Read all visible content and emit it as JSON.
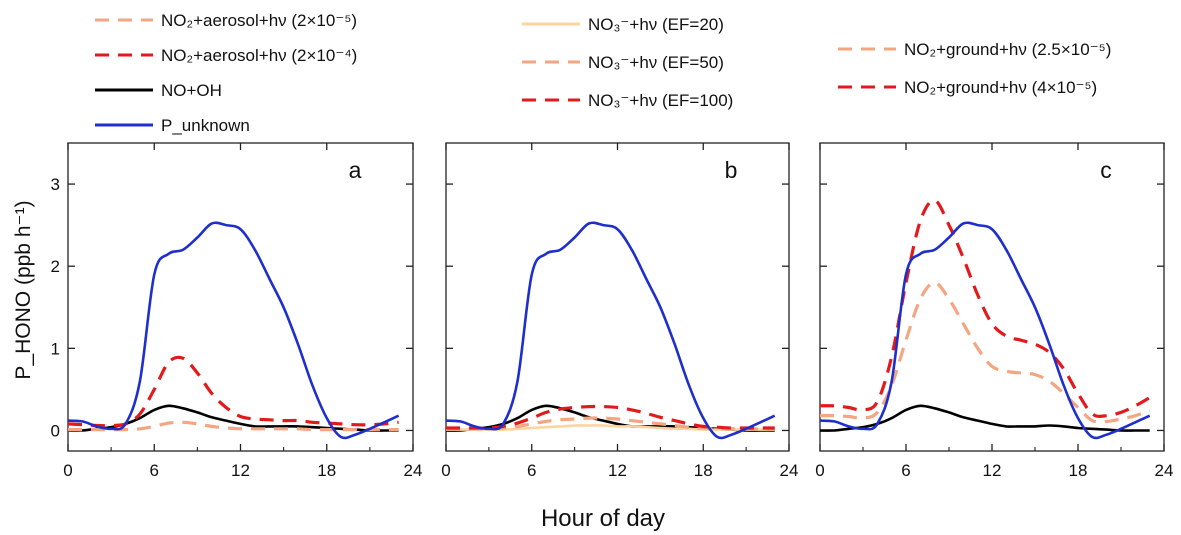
{
  "figure": {
    "ylabel": "P_HONO (ppb h⁻¹)",
    "xlabel": "Hour of day",
    "xticks": [
      "0",
      "6",
      "12",
      "18",
      "24"
    ],
    "yticks": [
      "0",
      "1",
      "2",
      "3"
    ]
  },
  "legend": {
    "group1": [
      {
        "text": "NO₂+aerosol+hν (2×10⁻⁵)",
        "color": "#f4a582",
        "dash": "dashed"
      },
      {
        "text": "NO₂+aerosol+hν (2×10⁻⁴)",
        "color": "#e31a1c",
        "dash": "dashed"
      },
      {
        "text": "NO+OH",
        "color": "#000000",
        "dash": "solid"
      },
      {
        "text": "P_unknown",
        "color": "#1f2fcc",
        "dash": "solid"
      }
    ],
    "group2": [
      {
        "text": "NO₃⁻+hν (EF=20)",
        "color": "#fdd49e",
        "dash": "solid"
      },
      {
        "text": "NO₃⁻+hν (EF=50)",
        "color": "#f4a582",
        "dash": "dashed"
      },
      {
        "text": "NO₃⁻+hν (EF=100)",
        "color": "#e31a1c",
        "dash": "dashed"
      }
    ],
    "group3": [
      {
        "text": "NO₂+ground+hν (2.5×10⁻⁵)",
        "color": "#f4a582",
        "dash": "dashed"
      },
      {
        "text": "NO₂+ground+hν (4×10⁻⁵)",
        "color": "#e31a1c",
        "dash": "dashed"
      }
    ]
  },
  "chart_data": [
    {
      "type": "line",
      "panel": "a",
      "xlim": [
        0,
        24
      ],
      "ylim": [
        -0.25,
        3.5
      ],
      "series": [
        {
          "name": "P_unknown",
          "color": "#1f2fcc",
          "dash": "solid",
          "x": [
            0,
            1,
            2,
            3,
            4,
            5,
            6,
            7,
            8,
            9,
            10,
            11,
            12,
            13,
            14,
            15,
            16,
            17,
            18,
            19,
            20,
            21,
            22,
            23
          ],
          "y": [
            0.12,
            0.11,
            0.05,
            0.02,
            0.08,
            0.6,
            1.9,
            2.15,
            2.2,
            2.35,
            2.52,
            2.5,
            2.45,
            2.2,
            1.85,
            1.5,
            1.05,
            0.55,
            0.15,
            -0.08,
            -0.05,
            0.02,
            0.1,
            0.18
          ]
        },
        {
          "name": "NO+OH",
          "color": "#000000",
          "dash": "solid",
          "x": [
            0,
            1,
            2,
            3,
            4,
            5,
            6,
            7,
            8,
            9,
            10,
            11,
            12,
            13,
            14,
            15,
            16,
            17,
            18,
            19,
            20,
            21,
            22,
            23
          ],
          "y": [
            0.0,
            0.0,
            0.02,
            0.04,
            0.08,
            0.15,
            0.25,
            0.3,
            0.27,
            0.22,
            0.16,
            0.12,
            0.08,
            0.05,
            0.05,
            0.05,
            0.05,
            0.04,
            0.03,
            0.02,
            0.01,
            0.0,
            0.0,
            0.0
          ]
        },
        {
          "name": "NO₂+aerosol+hν (2×10⁻⁴)",
          "color": "#e31a1c",
          "dash": "dashed",
          "x": [
            0,
            1,
            2,
            3,
            4,
            5,
            6,
            7,
            8,
            9,
            10,
            11,
            12,
            13,
            14,
            15,
            16,
            17,
            18,
            19,
            20,
            21,
            22,
            23
          ],
          "y": [
            0.08,
            0.07,
            0.06,
            0.06,
            0.08,
            0.2,
            0.5,
            0.83,
            0.88,
            0.7,
            0.45,
            0.28,
            0.17,
            0.14,
            0.13,
            0.12,
            0.12,
            0.1,
            0.09,
            0.08,
            0.07,
            0.07,
            0.08,
            0.1
          ]
        },
        {
          "name": "NO₂+aerosol+hν (2×10⁻⁵)",
          "color": "#f4a582",
          "dash": "dashed",
          "x": [
            0,
            1,
            2,
            3,
            4,
            5,
            6,
            7,
            8,
            9,
            10,
            11,
            12,
            13,
            14,
            15,
            16,
            17,
            18,
            19,
            20,
            21,
            22,
            23
          ],
          "y": [
            0.01,
            0.01,
            0.01,
            0.01,
            0.01,
            0.02,
            0.05,
            0.09,
            0.1,
            0.08,
            0.05,
            0.03,
            0.02,
            0.02,
            0.02,
            0.02,
            0.02,
            0.01,
            0.01,
            0.01,
            0.01,
            0.01,
            0.01,
            0.01
          ]
        }
      ]
    },
    {
      "type": "line",
      "panel": "b",
      "xlim": [
        0,
        24
      ],
      "ylim": [
        -0.25,
        3.5
      ],
      "series": [
        {
          "name": "P_unknown",
          "color": "#1f2fcc",
          "dash": "solid",
          "x": [
            0,
            1,
            2,
            3,
            4,
            5,
            6,
            7,
            8,
            9,
            10,
            11,
            12,
            13,
            14,
            15,
            16,
            17,
            18,
            19,
            20,
            21,
            22,
            23
          ],
          "y": [
            0.12,
            0.11,
            0.05,
            0.02,
            0.08,
            0.6,
            1.9,
            2.15,
            2.2,
            2.35,
            2.52,
            2.5,
            2.45,
            2.2,
            1.85,
            1.5,
            1.05,
            0.55,
            0.15,
            -0.08,
            -0.05,
            0.02,
            0.1,
            0.18
          ]
        },
        {
          "name": "NO+OH",
          "color": "#000000",
          "dash": "solid",
          "x": [
            0,
            1,
            2,
            3,
            4,
            5,
            6,
            7,
            8,
            9,
            10,
            11,
            12,
            13,
            14,
            15,
            16,
            17,
            18,
            19,
            20,
            21,
            22,
            23
          ],
          "y": [
            0.0,
            0.0,
            0.02,
            0.04,
            0.08,
            0.15,
            0.25,
            0.3,
            0.27,
            0.22,
            0.16,
            0.12,
            0.08,
            0.05,
            0.05,
            0.05,
            0.05,
            0.04,
            0.03,
            0.02,
            0.01,
            0.0,
            0.0,
            0.0
          ]
        },
        {
          "name": "NO₃⁻+hν (EF=20)",
          "color": "#fdd49e",
          "dash": "solid",
          "x": [
            0,
            1,
            2,
            3,
            4,
            5,
            6,
            7,
            8,
            9,
            10,
            11,
            12,
            13,
            14,
            15,
            16,
            17,
            18,
            19,
            20,
            21,
            22,
            23
          ],
          "y": [
            0.01,
            0.01,
            0.01,
            0.01,
            0.01,
            0.02,
            0.03,
            0.04,
            0.05,
            0.06,
            0.06,
            0.06,
            0.05,
            0.05,
            0.04,
            0.03,
            0.02,
            0.02,
            0.01,
            0.01,
            0.01,
            0.01,
            0.01,
            0.01
          ]
        },
        {
          "name": "NO₃⁻+hν (EF=50)",
          "color": "#f4a582",
          "dash": "dashed",
          "x": [
            0,
            1,
            2,
            3,
            4,
            5,
            6,
            7,
            8,
            9,
            10,
            11,
            12,
            13,
            14,
            15,
            16,
            17,
            18,
            19,
            20,
            21,
            22,
            23
          ],
          "y": [
            0.02,
            0.02,
            0.02,
            0.02,
            0.03,
            0.05,
            0.08,
            0.11,
            0.13,
            0.14,
            0.15,
            0.15,
            0.14,
            0.12,
            0.1,
            0.08,
            0.06,
            0.04,
            0.03,
            0.02,
            0.02,
            0.02,
            0.02,
            0.02
          ]
        },
        {
          "name": "NO₃⁻+hν (EF=100)",
          "color": "#e31a1c",
          "dash": "dashed",
          "x": [
            0,
            1,
            2,
            3,
            4,
            5,
            6,
            7,
            8,
            9,
            10,
            11,
            12,
            13,
            14,
            15,
            16,
            17,
            18,
            19,
            20,
            21,
            22,
            23
          ],
          "y": [
            0.03,
            0.03,
            0.03,
            0.03,
            0.05,
            0.09,
            0.15,
            0.22,
            0.26,
            0.28,
            0.29,
            0.29,
            0.28,
            0.25,
            0.21,
            0.16,
            0.12,
            0.08,
            0.05,
            0.04,
            0.03,
            0.03,
            0.03,
            0.03
          ]
        }
      ]
    },
    {
      "type": "line",
      "panel": "c",
      "xlim": [
        0,
        24
      ],
      "ylim": [
        -0.25,
        3.5
      ],
      "series": [
        {
          "name": "P_unknown",
          "color": "#1f2fcc",
          "dash": "solid",
          "x": [
            0,
            1,
            2,
            3,
            4,
            5,
            6,
            7,
            8,
            9,
            10,
            11,
            12,
            13,
            14,
            15,
            16,
            17,
            18,
            19,
            20,
            21,
            22,
            23
          ],
          "y": [
            0.12,
            0.11,
            0.05,
            0.02,
            0.08,
            0.6,
            1.9,
            2.15,
            2.2,
            2.35,
            2.52,
            2.5,
            2.45,
            2.2,
            1.85,
            1.5,
            1.05,
            0.55,
            0.15,
            -0.08,
            -0.05,
            0.02,
            0.1,
            0.18
          ]
        },
        {
          "name": "NO+OH",
          "color": "#000000",
          "dash": "solid",
          "x": [
            0,
            1,
            2,
            3,
            4,
            5,
            6,
            7,
            8,
            9,
            10,
            11,
            12,
            13,
            14,
            15,
            16,
            17,
            18,
            19,
            20,
            21,
            22,
            23
          ],
          "y": [
            0.0,
            0.0,
            0.02,
            0.04,
            0.08,
            0.15,
            0.25,
            0.3,
            0.27,
            0.22,
            0.16,
            0.12,
            0.08,
            0.05,
            0.05,
            0.05,
            0.06,
            0.05,
            0.03,
            0.02,
            0.01,
            0.0,
            0.0,
            0.0
          ]
        },
        {
          "name": "NO₂+ground+hν (4×10⁻⁵)",
          "color": "#e31a1c",
          "dash": "dashed",
          "x": [
            0,
            1,
            2,
            3,
            4,
            5,
            6,
            7,
            8,
            9,
            10,
            11,
            12,
            13,
            14,
            15,
            16,
            17,
            18,
            19,
            20,
            21,
            22,
            23
          ],
          "y": [
            0.3,
            0.3,
            0.28,
            0.25,
            0.35,
            0.9,
            1.8,
            2.55,
            2.8,
            2.5,
            2.1,
            1.65,
            1.3,
            1.15,
            1.1,
            1.05,
            0.95,
            0.75,
            0.45,
            0.2,
            0.18,
            0.22,
            0.3,
            0.4
          ]
        },
        {
          "name": "NO₂+ground+hν (2.5×10⁻⁵)",
          "color": "#f4a582",
          "dash": "dashed",
          "x": [
            0,
            1,
            2,
            3,
            4,
            5,
            6,
            7,
            8,
            9,
            10,
            11,
            12,
            13,
            14,
            15,
            16,
            17,
            18,
            19,
            20,
            21,
            22,
            23
          ],
          "y": [
            0.18,
            0.18,
            0.17,
            0.15,
            0.22,
            0.55,
            1.1,
            1.6,
            1.8,
            1.6,
            1.3,
            1.0,
            0.78,
            0.72,
            0.7,
            0.68,
            0.6,
            0.45,
            0.28,
            0.12,
            0.11,
            0.14,
            0.18,
            0.24
          ]
        }
      ]
    }
  ]
}
